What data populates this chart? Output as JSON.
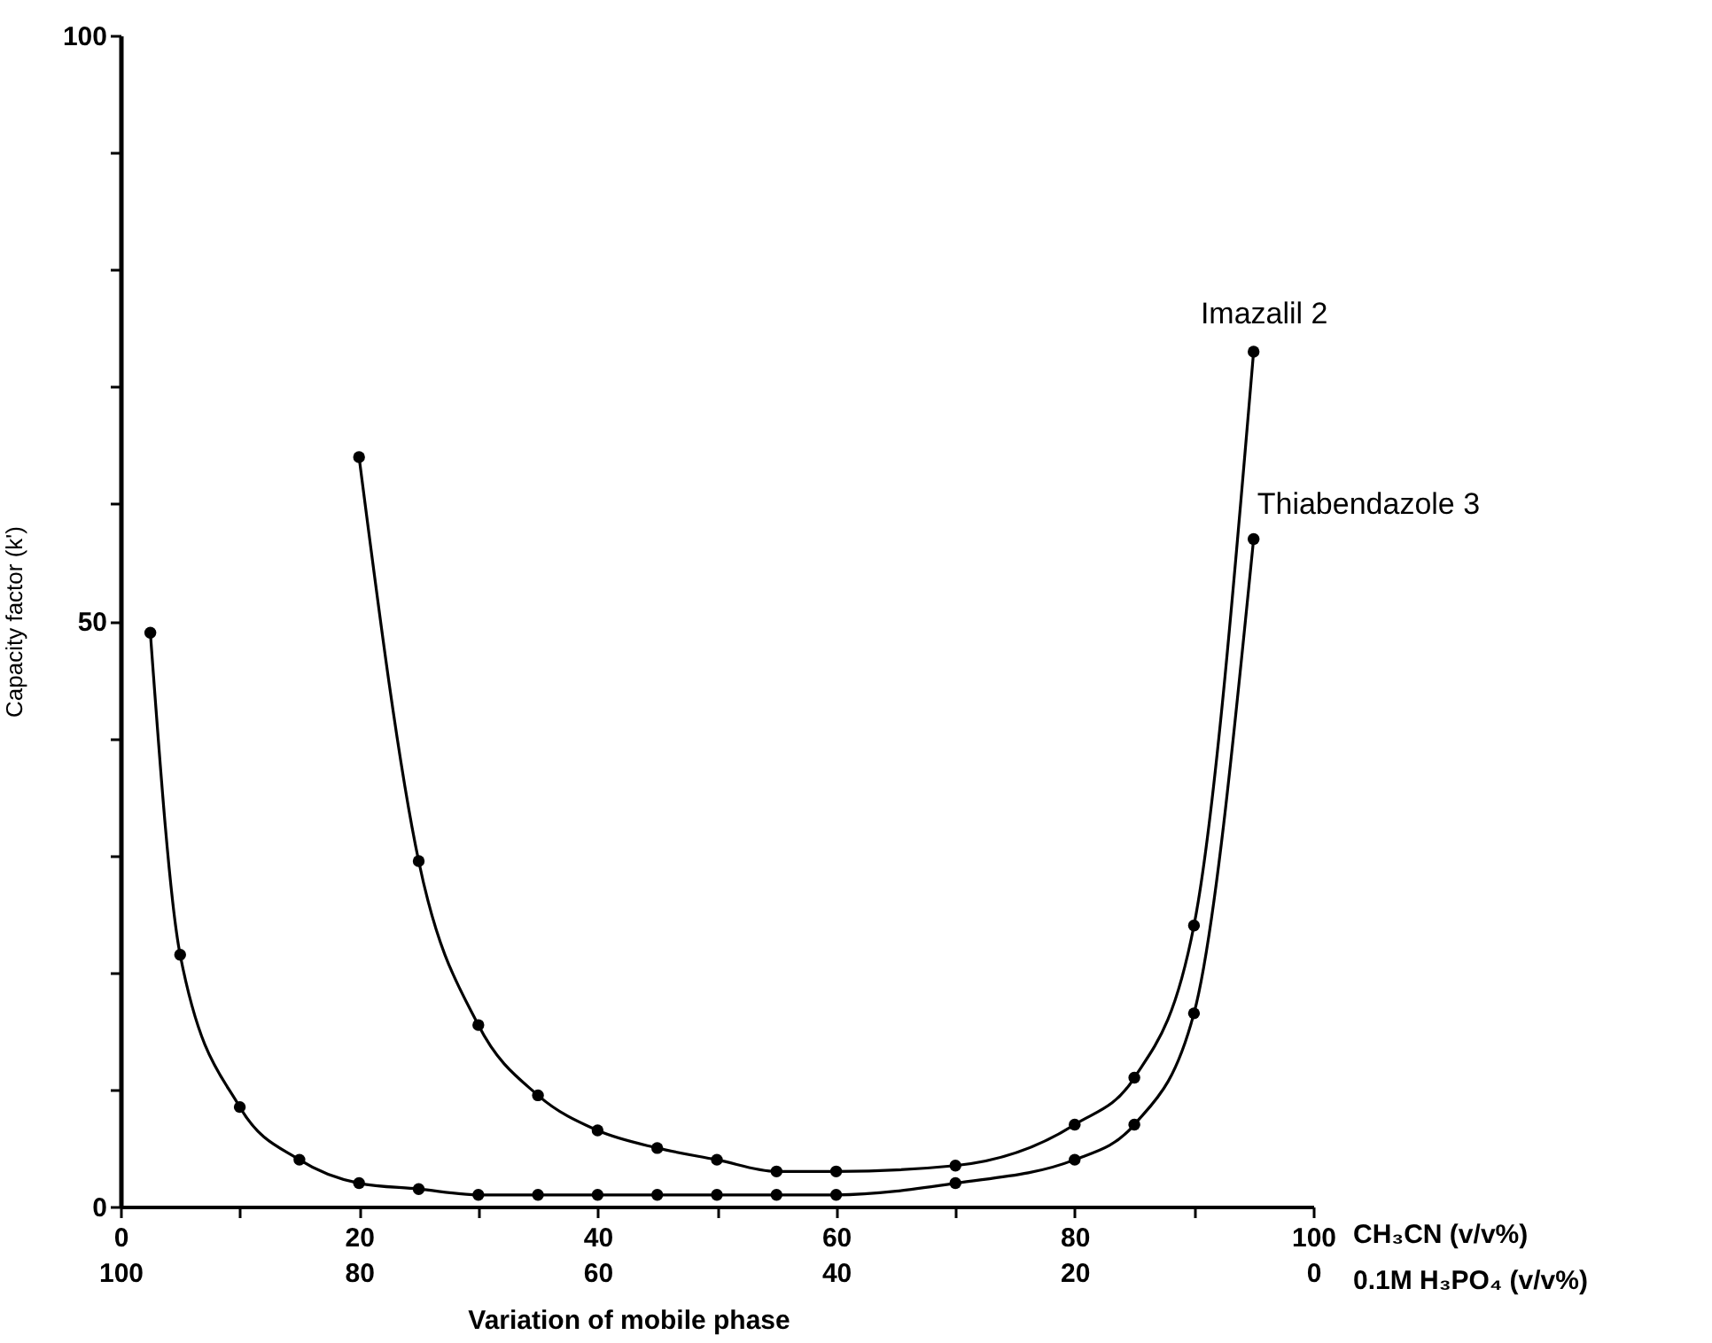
{
  "chart_data": {
    "type": "line",
    "xlabel": "Variation of mobile phase",
    "ylabel": "Capacity factor (k')",
    "x2label": "0.1M H₃PO₄ (v/v%)",
    "annotations": [
      "CH₃CN (v/v%)"
    ],
    "series": [
      {
        "name": "Imazalil 2",
        "color": "#000000",
        "x": [
          20,
          25,
          30,
          35,
          40,
          45,
          50,
          55,
          60,
          70,
          80,
          85,
          90,
          95
        ],
        "values": [
          64,
          29.5,
          15.5,
          9.5,
          6.5,
          5,
          4,
          3,
          3,
          3.5,
          7,
          11,
          24,
          73
        ]
      },
      {
        "name": "Thiabendazole 3",
        "color": "#000000",
        "x": [
          2.5,
          5,
          10,
          15,
          20,
          25,
          30,
          35,
          40,
          45,
          50,
          55,
          60,
          70,
          80,
          85,
          90,
          95
        ],
        "values": [
          49,
          21.5,
          8.5,
          4,
          2,
          1.5,
          1,
          1,
          1,
          1,
          1,
          1,
          1,
          2,
          4,
          7,
          16.5,
          57
        ]
      }
    ],
    "xlim": [
      0,
      100
    ],
    "xticks": [
      0,
      {
        "value": 10,
        "label": null
      },
      20,
      {
        "value": 30,
        "label": null
      },
      40,
      {
        "value": 50,
        "label": null
      },
      60,
      {
        "value": 70,
        "label": null
      },
      80,
      {
        "value": 90,
        "label": null
      },
      100
    ],
    "x2lim": [
      100,
      0
    ],
    "x2ticks": [
      100,
      80,
      60,
      40,
      20,
      0
    ],
    "ylim": [
      0,
      100
    ],
    "yticks": [
      0,
      {
        "value": 10,
        "label": null
      },
      {
        "value": 20,
        "label": null
      },
      {
        "value": 30,
        "label": null
      },
      {
        "value": 40,
        "label": null
      },
      50,
      {
        "value": 60,
        "label": null
      },
      {
        "value": 70,
        "label": null
      },
      {
        "value": 80,
        "label": null
      },
      {
        "value": 90,
        "label": null
      },
      100
    ],
    "grid": false,
    "marker": "circle",
    "line_style": "solid"
  }
}
